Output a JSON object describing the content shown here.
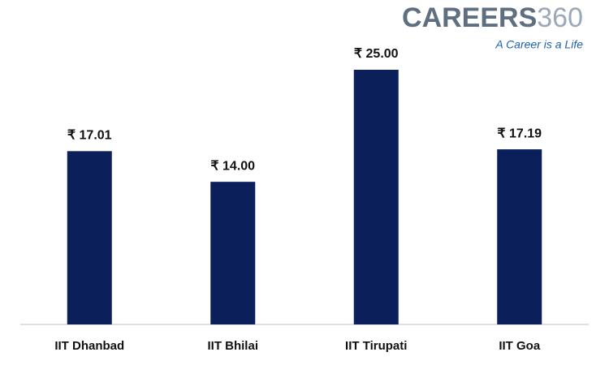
{
  "chart_data": {
    "type": "bar",
    "categories": [
      "IIT Dhanbad",
      "IIT Bhilai",
      "IIT Tirupati",
      "IIT Goa"
    ],
    "values": [
      17.01,
      14.0,
      25.0,
      17.19
    ],
    "value_labels": [
      "₹ 17.01",
      "₹ 14.00",
      "₹ 25.00",
      "₹ 17.19"
    ],
    "color": "#0b1f5b",
    "logo": {
      "brand": [
        "CAREERS",
        "360"
      ],
      "tagline": "A Career is a Life"
    }
  }
}
